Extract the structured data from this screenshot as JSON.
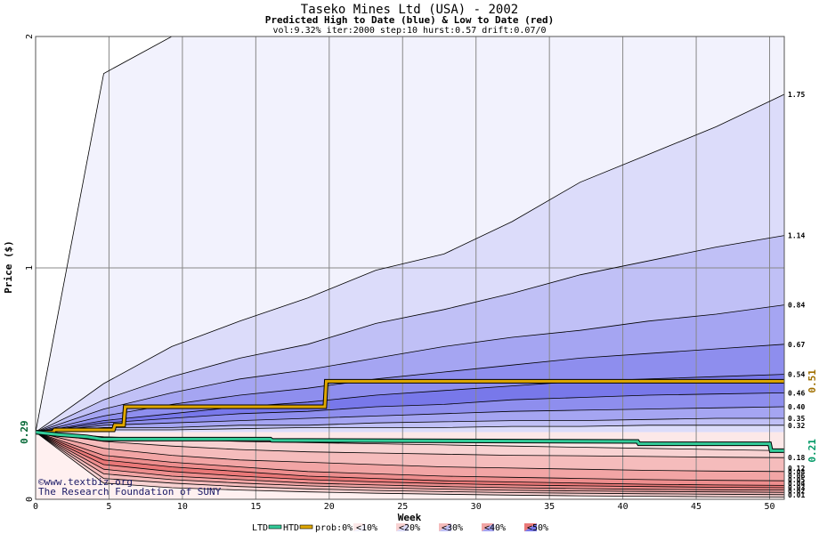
{
  "chart_data": {
    "type": "area",
    "title": "Taseko Mines Ltd (USA) - 2002",
    "subtitle": "Predicted High to Date (blue) &  Low to Date (red)",
    "params": "vol:9.32% iter:2000 step:10 hurst:0.57 drift:0.07/0",
    "xlabel": "Week",
    "ylabel": "Price ($)",
    "xlim": [
      0,
      51
    ],
    "ylim": [
      0,
      2
    ],
    "x_ticks": [
      0,
      5,
      10,
      15,
      20,
      25,
      30,
      35,
      40,
      45,
      50
    ],
    "y_ticks": [
      0,
      1,
      2
    ],
    "grid": true,
    "start_price": 0.29,
    "start_price_label": "0.29",
    "high_end_labels": [
      "1.75",
      "1.14",
      "0.84",
      "0.67",
      "0.54",
      "0.46",
      "0.40",
      "0.35",
      "0.32"
    ],
    "high_bands": [
      {
        "values": [
          0.29,
          1.84,
          2.0,
          2.0,
          2.0,
          2.0,
          2.0,
          2.0,
          2.0,
          2.0,
          2.0,
          2.0
        ],
        "color": "#f2f2fd"
      },
      {
        "values": [
          0.29,
          0.5,
          0.66,
          0.77,
          0.87,
          0.99,
          1.06,
          1.2,
          1.37,
          1.49,
          1.61,
          1.75
        ],
        "color": "#dcdcfa"
      },
      {
        "values": [
          0.29,
          0.43,
          0.53,
          0.61,
          0.67,
          0.76,
          0.82,
          0.89,
          0.97,
          1.03,
          1.09,
          1.14
        ],
        "color": "#c0c0f6"
      },
      {
        "values": [
          0.29,
          0.39,
          0.46,
          0.52,
          0.56,
          0.61,
          0.66,
          0.7,
          0.73,
          0.77,
          0.8,
          0.84
        ],
        "color": "#a5a5f2"
      },
      {
        "values": [
          0.29,
          0.36,
          0.41,
          0.45,
          0.48,
          0.52,
          0.55,
          0.58,
          0.61,
          0.63,
          0.65,
          0.67
        ],
        "color": "#8e8eee"
      },
      {
        "values": [
          0.29,
          0.34,
          0.37,
          0.4,
          0.42,
          0.45,
          0.47,
          0.49,
          0.51,
          0.52,
          0.53,
          0.54
        ],
        "color": "#7878ea"
      },
      {
        "values": [
          0.29,
          0.33,
          0.35,
          0.37,
          0.38,
          0.4,
          0.41,
          0.43,
          0.44,
          0.45,
          0.455,
          0.46
        ],
        "color": "#8e8eee"
      },
      {
        "values": [
          0.29,
          0.32,
          0.33,
          0.34,
          0.35,
          0.36,
          0.37,
          0.38,
          0.385,
          0.39,
          0.395,
          0.4
        ],
        "color": "#a5a5f2"
      },
      {
        "values": [
          0.29,
          0.31,
          0.31,
          0.32,
          0.32,
          0.33,
          0.335,
          0.34,
          0.34,
          0.345,
          0.35,
          0.35
        ],
        "color": "#c0c0f6"
      },
      {
        "values": [
          0.29,
          0.3,
          0.3,
          0.305,
          0.31,
          0.31,
          0.31,
          0.315,
          0.315,
          0.32,
          0.32,
          0.32
        ],
        "color": "#dcdcfa"
      }
    ],
    "low_end_labels": [
      "0.18",
      "0.12",
      "0.08",
      "0.06",
      "0.05",
      "0.04",
      "0.03",
      "0.02",
      "0.01"
    ],
    "low_bands": [
      {
        "values": [
          0.29,
          0.27,
          0.26,
          0.25,
          0.245,
          0.24,
          0.235,
          0.23,
          0.225,
          0.22,
          0.215,
          0.21
        ],
        "color": "#fce8e8"
      },
      {
        "values": [
          0.29,
          0.25,
          0.23,
          0.215,
          0.205,
          0.2,
          0.195,
          0.19,
          0.188,
          0.185,
          0.182,
          0.18
        ],
        "color": "#f8d2d2"
      },
      {
        "values": [
          0.29,
          0.22,
          0.19,
          0.17,
          0.16,
          0.15,
          0.14,
          0.135,
          0.13,
          0.125,
          0.122,
          0.12
        ],
        "color": "#f5bcbc"
      },
      {
        "values": [
          0.29,
          0.19,
          0.16,
          0.14,
          0.12,
          0.11,
          0.1,
          0.095,
          0.09,
          0.085,
          0.082,
          0.08
        ],
        "color": "#f2a5a5"
      },
      {
        "values": [
          0.29,
          0.17,
          0.14,
          0.12,
          0.1,
          0.09,
          0.08,
          0.075,
          0.07,
          0.065,
          0.062,
          0.06
        ],
        "color": "#ee8e8e"
      },
      {
        "values": [
          0.29,
          0.15,
          0.12,
          0.1,
          0.085,
          0.075,
          0.068,
          0.062,
          0.058,
          0.055,
          0.052,
          0.05
        ],
        "color": "#ea7878"
      },
      {
        "values": [
          0.29,
          0.13,
          0.1,
          0.085,
          0.07,
          0.062,
          0.055,
          0.05,
          0.046,
          0.043,
          0.041,
          0.04
        ],
        "color": "#ee8e8e"
      },
      {
        "values": [
          0.29,
          0.11,
          0.085,
          0.07,
          0.058,
          0.05,
          0.044,
          0.039,
          0.036,
          0.034,
          0.032,
          0.03
        ],
        "color": "#f2a5a5"
      },
      {
        "values": [
          0.29,
          0.09,
          0.07,
          0.055,
          0.045,
          0.038,
          0.033,
          0.029,
          0.026,
          0.024,
          0.022,
          0.02
        ],
        "color": "#f5bcbc"
      },
      {
        "values": [
          0.29,
          0.07,
          0.05,
          0.04,
          0.032,
          0.026,
          0.022,
          0.018,
          0.015,
          0.013,
          0.011,
          0.01
        ],
        "color": "#f8d2d2"
      }
    ],
    "htd_line": {
      "name": "HTD",
      "points": [
        [
          0,
          0.29
        ],
        [
          1.2,
          0.29
        ],
        [
          1.3,
          0.3
        ],
        [
          5.3,
          0.3
        ],
        [
          5.4,
          0.32
        ],
        [
          6.0,
          0.32
        ],
        [
          6.1,
          0.4
        ],
        [
          19.7,
          0.4
        ],
        [
          19.8,
          0.51
        ],
        [
          51,
          0.51
        ]
      ],
      "color": "#e0a800",
      "end_label": "0.51"
    },
    "ltd_line": {
      "name": "LTD",
      "points": [
        [
          0,
          0.29
        ],
        [
          1.5,
          0.28
        ],
        [
          3.5,
          0.27
        ],
        [
          4.5,
          0.26
        ],
        [
          16,
          0.26
        ],
        [
          16.1,
          0.255
        ],
        [
          41,
          0.25
        ],
        [
          41.1,
          0.24
        ],
        [
          50,
          0.24
        ],
        [
          50.1,
          0.21
        ],
        [
          51,
          0.21
        ]
      ],
      "color": "#33cc99",
      "end_label": "0.21"
    },
    "credits": [
      "©www.textbiz.org",
      "The Research Foundation of SUNY"
    ],
    "legend": {
      "ltd": "LTD",
      "htd": "HTD",
      "prob": "prob:0%",
      "items": [
        "<10%",
        "<20%",
        "<30%",
        "<40%",
        "<50%"
      ],
      "item_colors": [
        [
          "#fce8e8",
          "#f2f2fd"
        ],
        [
          "#f8d2d2",
          "#dcdcfa"
        ],
        [
          "#f5bcbc",
          "#c0c0f6"
        ],
        [
          "#f2a5a5",
          "#a5a5f2"
        ],
        [
          "#ea7878",
          "#7878ea"
        ]
      ]
    },
    "colors": {
      "plot_bg": "#ffffff",
      "grid": "#888888",
      "htd": "#e0a800",
      "ltd": "#33cc99",
      "htd_label": "#a07000",
      "ltd_label": "#009966",
      "start_label": "#006633"
    }
  }
}
